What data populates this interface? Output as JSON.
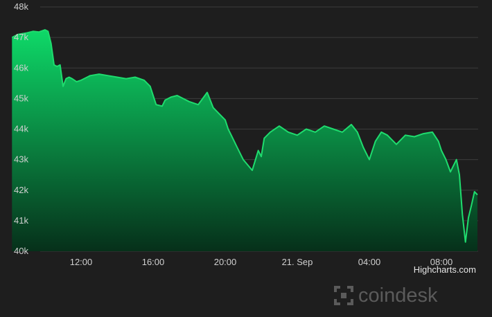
{
  "chart_data": {
    "type": "area",
    "title": "",
    "xlabel": "",
    "ylabel": "",
    "ylim": [
      40000,
      48000
    ],
    "y_ticks": [
      40000,
      41000,
      42000,
      43000,
      44000,
      45000,
      46000,
      47000,
      48000
    ],
    "y_tick_labels": [
      "40k",
      "41k",
      "42k",
      "43k",
      "44k",
      "45k",
      "46k",
      "47k",
      "48k"
    ],
    "x_tick_labels": [
      "12:00",
      "16:00",
      "20:00",
      "21. Sep",
      "04:00",
      "08:00"
    ],
    "x_tick_times": [
      "09-20 12:00",
      "09-20 16:00",
      "09-20 20:00",
      "09-21 00:00",
      "09-21 04:00",
      "09-21 08:00"
    ],
    "grid": true,
    "legend": "none",
    "series": [
      {
        "x": [
          "09-20 08:10",
          "09-20 08:30",
          "09-20 09:00",
          "09-20 09:20",
          "09-20 09:40",
          "09-20 10:00",
          "09-20 10:10",
          "09-20 10:20",
          "09-20 10:30",
          "09-20 10:40",
          "09-20 10:50",
          "09-20 11:00",
          "09-20 11:10",
          "09-20 11:20",
          "09-20 11:30",
          "09-20 11:45",
          "09-20 12:00",
          "09-20 12:30",
          "09-20 13:00",
          "09-20 13:30",
          "09-20 14:00",
          "09-20 14:30",
          "09-20 15:00",
          "09-20 15:30",
          "09-20 15:50",
          "09-20 16:10",
          "09-20 16:30",
          "09-20 16:40",
          "09-20 16:50",
          "09-20 17:00",
          "09-20 17:20",
          "09-20 17:40",
          "09-20 18:00",
          "09-20 18:30",
          "09-20 19:00",
          "09-20 19:20",
          "09-20 19:40",
          "09-20 20:00",
          "09-20 20:10",
          "09-20 20:20",
          "09-20 20:40",
          "09-20 21:00",
          "09-20 21:30",
          "09-20 21:50",
          "09-20 22:00",
          "09-20 22:10",
          "09-20 22:30",
          "09-20 23:00",
          "09-20 23:30",
          "09-21 00:00",
          "09-21 00:30",
          "09-21 01:00",
          "09-21 01:30",
          "09-21 02:00",
          "09-21 02:30",
          "09-21 03:00",
          "09-21 03:20",
          "09-21 03:40",
          "09-21 04:00",
          "09-21 04:20",
          "09-21 04:40",
          "09-21 05:00",
          "09-21 05:30",
          "09-21 06:00",
          "09-21 06:30",
          "09-21 07:00",
          "09-21 07:30",
          "09-21 07:50",
          "09-21 08:00",
          "09-21 08:15",
          "09-21 08:30",
          "09-21 08:50",
          "09-21 09:00",
          "09-21 09:10",
          "09-21 09:20",
          "09-21 09:30",
          "09-21 09:40",
          "09-21 09:50",
          "09-21 10:00"
        ],
        "y": [
          47000,
          47100,
          47150,
          47200,
          47180,
          47250,
          47200,
          46800,
          46100,
          46050,
          46100,
          45400,
          45650,
          45700,
          45650,
          45550,
          45600,
          45750,
          45800,
          45750,
          45700,
          45650,
          45700,
          45600,
          45400,
          44800,
          44750,
          44950,
          45000,
          45050,
          45100,
          45000,
          44900,
          44800,
          45200,
          44700,
          44500,
          44300,
          44000,
          43800,
          43400,
          43000,
          42650,
          43300,
          43100,
          43700,
          43900,
          44100,
          43900,
          43800,
          44000,
          43900,
          44100,
          44000,
          43900,
          44150,
          43900,
          43400,
          43000,
          43600,
          43900,
          43800,
          43500,
          43800,
          43750,
          43850,
          43900,
          43600,
          43300,
          43000,
          42600,
          43000,
          42500,
          41200,
          40300,
          41100,
          41500,
          41950,
          41850
        ]
      }
    ]
  },
  "credits": "Highcharts.com",
  "brand": {
    "name": "coindesk",
    "icon": "coindesk-logo-icon"
  },
  "colors": {
    "line": "#1fdc6e",
    "fill_top": "#0ed968",
    "fill_bottom": "#06301a",
    "grid": "#3c3c3c",
    "background": "#1e1e1e"
  }
}
